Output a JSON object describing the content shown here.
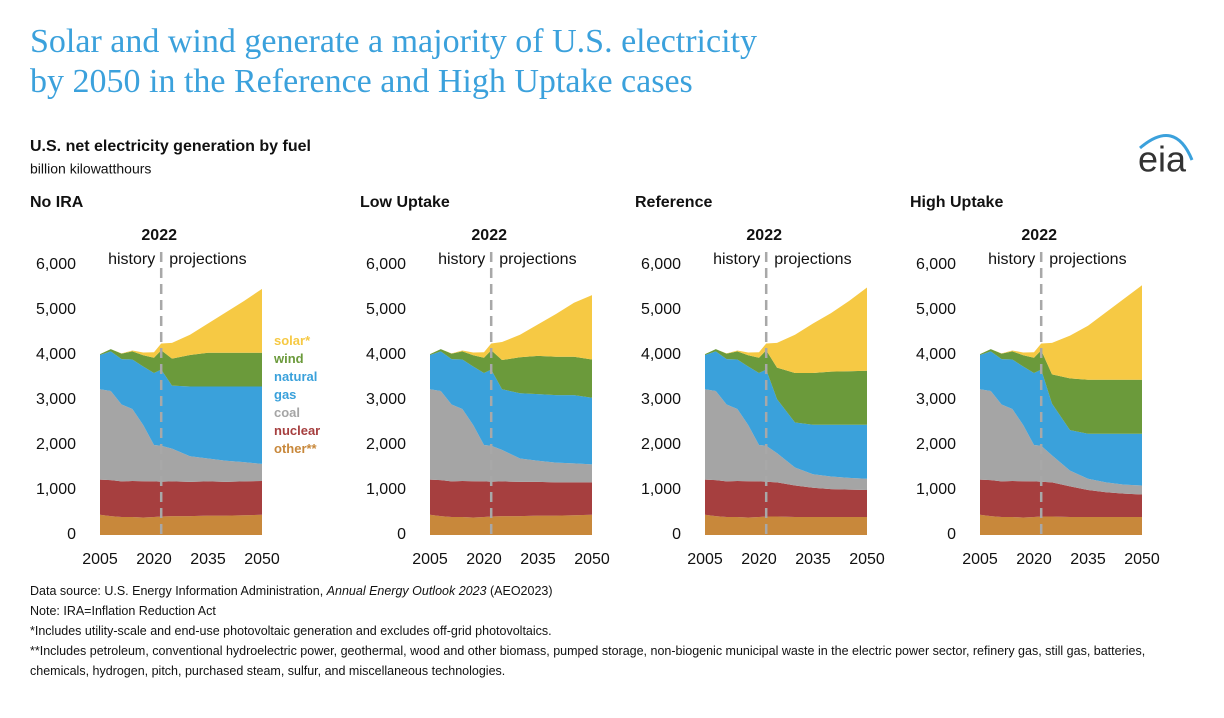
{
  "title": [
    "Solar and wind generate a majority of U.S. electricity",
    "by 2050 in the Reference and High Uptake cases"
  ],
  "subtitle": "U.S. net electricity generation by fuel",
  "unit": "billion kilowatthours",
  "logo": "eia",
  "notes": [
    [
      "Data source: U.S. Energy Information Administration, ",
      "Annual Energy Outlook 2023",
      " (AEO2023)"
    ],
    [
      "Note: IRA=Inflation Reduction Act"
    ],
    [
      "*Includes utility-scale and end-use photovoltaic generation and excludes off-grid photovoltaics."
    ],
    [
      "**Includes petroleum, conventional hydroelectric power, geothermal, wood and other biomass, pumped storage, non-biogenic municipal waste in the electric power sector, refinery gas, still gas, batteries, chemicals, hydrogen, pitch, purchased steam, sulfur, and miscellaneous technologies."
    ]
  ],
  "chart_data": [
    {
      "type": "area",
      "title": "No IRA",
      "divider": 2022,
      "history_label": "history",
      "projection_label": "projections",
      "x": [
        2005,
        2008,
        2011,
        2014,
        2017,
        2020,
        2022,
        2025,
        2030,
        2035,
        2040,
        2045,
        2050
      ],
      "xlim": [
        2005,
        2050
      ],
      "xticks": [
        2005,
        2020,
        2035,
        2050
      ],
      "ylim": [
        0,
        6000
      ],
      "yticks": [
        0,
        {
          "value": 1000,
          "label": "1,000"
        },
        {
          "value": 2000,
          "label": "2,000"
        },
        {
          "value": 3000,
          "label": "3,000"
        },
        {
          "value": 4000,
          "label": "4,000"
        },
        {
          "value": 5000,
          "label": "5,000"
        },
        {
          "value": 6000,
          "label": "6,000"
        }
      ],
      "series": [
        {
          "name": "other**",
          "color": "#c8883b",
          "values": [
            450,
            420,
            400,
            400,
            390,
            400,
            410,
            420,
            420,
            430,
            430,
            440,
            450
          ]
        },
        {
          "name": "nuclear",
          "color": "#a63f3f",
          "values": [
            780,
            800,
            790,
            800,
            805,
            790,
            775,
            770,
            760,
            760,
            750,
            750,
            750
          ]
        },
        {
          "name": "coal",
          "color": "#a5a5a5",
          "values": [
            2010,
            1980,
            1710,
            1600,
            1250,
            810,
            800,
            730,
            570,
            510,
            470,
            430,
            380
          ]
        },
        {
          "name": "natural gas",
          "color": "#3aa1db",
          "values": [
            760,
            880,
            1010,
            1100,
            1300,
            1600,
            1690,
            1400,
            1550,
            1600,
            1650,
            1680,
            1720
          ]
        },
        {
          "name": "wind",
          "color": "#6b9a3b",
          "values": [
            20,
            50,
            120,
            180,
            250,
            340,
            430,
            600,
            700,
            750,
            750,
            750,
            750
          ]
        },
        {
          "name": "solar*",
          "color": "#f6c944",
          "values": [
            0,
            0,
            5,
            20,
            60,
            120,
            150,
            350,
            450,
            650,
            900,
            1150,
            1420
          ]
        }
      ]
    },
    {
      "type": "area",
      "title": "Low Uptake",
      "divider": 2022,
      "history_label": "history",
      "projection_label": "projections",
      "x": [
        2005,
        2008,
        2011,
        2014,
        2017,
        2020,
        2022,
        2025,
        2030,
        2035,
        2040,
        2045,
        2050
      ],
      "xlim": [
        2005,
        2050
      ],
      "xticks": [
        2005,
        2020,
        2035,
        2050
      ],
      "ylim": [
        0,
        6000
      ],
      "yticks": [
        0,
        {
          "value": 1000,
          "label": "1,000"
        },
        {
          "value": 2000,
          "label": "2,000"
        },
        {
          "value": 3000,
          "label": "3,000"
        },
        {
          "value": 4000,
          "label": "4,000"
        },
        {
          "value": 5000,
          "label": "5,000"
        },
        {
          "value": 6000,
          "label": "6,000"
        }
      ],
      "series": [
        {
          "color": "#c8883b",
          "values": [
            450,
            420,
            400,
            400,
            390,
            400,
            410,
            420,
            420,
            430,
            430,
            440,
            450
          ]
        },
        {
          "color": "#a63f3f",
          "values": [
            780,
            800,
            790,
            800,
            805,
            790,
            775,
            770,
            760,
            750,
            740,
            730,
            720
          ]
        },
        {
          "color": "#a5a5a5",
          "values": [
            2010,
            1980,
            1710,
            1600,
            1250,
            810,
            800,
            700,
            520,
            470,
            440,
            420,
            400
          ]
        },
        {
          "color": "#3aa1db",
          "values": [
            760,
            880,
            1010,
            1100,
            1300,
            1600,
            1690,
            1350,
            1450,
            1480,
            1500,
            1520,
            1480
          ]
        },
        {
          "color": "#6b9a3b",
          "values": [
            20,
            50,
            120,
            180,
            250,
            340,
            430,
            650,
            800,
            850,
            850,
            850,
            850
          ]
        },
        {
          "color": "#f6c944",
          "values": [
            0,
            0,
            5,
            20,
            60,
            120,
            150,
            400,
            500,
            700,
            950,
            1200,
            1430
          ]
        }
      ]
    },
    {
      "type": "area",
      "title": "Reference",
      "divider": 2022,
      "history_label": "history",
      "projection_label": "projections",
      "x": [
        2005,
        2008,
        2011,
        2014,
        2017,
        2020,
        2022,
        2025,
        2030,
        2035,
        2040,
        2045,
        2050
      ],
      "xlim": [
        2005,
        2050
      ],
      "xticks": [
        2005,
        2020,
        2035,
        2050
      ],
      "ylim": [
        0,
        6000
      ],
      "yticks": [
        0,
        {
          "value": 1000,
          "label": "1,000"
        },
        {
          "value": 2000,
          "label": "2,000"
        },
        {
          "value": 3000,
          "label": "3,000"
        },
        {
          "value": 4000,
          "label": "4,000"
        },
        {
          "value": 5000,
          "label": "5,000"
        },
        {
          "value": 6000,
          "label": "6,000"
        }
      ],
      "series": [
        {
          "color": "#c8883b",
          "values": [
            450,
            420,
            400,
            400,
            390,
            400,
            410,
            410,
            400,
            400,
            400,
            400,
            400
          ]
        },
        {
          "color": "#a63f3f",
          "values": [
            780,
            800,
            790,
            800,
            805,
            790,
            775,
            760,
            700,
            650,
            620,
            610,
            600
          ]
        },
        {
          "color": "#a5a5a5",
          "values": [
            2010,
            1980,
            1710,
            1600,
            1250,
            810,
            800,
            650,
            400,
            300,
            280,
            260,
            250
          ]
        },
        {
          "color": "#3aa1db",
          "values": [
            760,
            880,
            1010,
            1100,
            1300,
            1600,
            1690,
            1200,
            1000,
            1100,
            1150,
            1180,
            1200
          ]
        },
        {
          "color": "#6b9a3b",
          "values": [
            20,
            50,
            120,
            180,
            250,
            340,
            430,
            700,
            1100,
            1150,
            1180,
            1190,
            1200
          ]
        },
        {
          "color": "#f6c944",
          "values": [
            0,
            0,
            5,
            20,
            60,
            120,
            150,
            550,
            850,
            1100,
            1300,
            1560,
            1850
          ]
        }
      ]
    },
    {
      "type": "area",
      "title": "High Uptake",
      "divider": 2022,
      "history_label": "history",
      "projection_label": "projections",
      "x": [
        2005,
        2008,
        2011,
        2014,
        2017,
        2020,
        2022,
        2025,
        2030,
        2035,
        2040,
        2045,
        2050
      ],
      "xlim": [
        2005,
        2050
      ],
      "xticks": [
        2005,
        2020,
        2035,
        2050
      ],
      "ylim": [
        0,
        6000
      ],
      "yticks": [
        0,
        {
          "value": 1000,
          "label": "1,000"
        },
        {
          "value": 2000,
          "label": "2,000"
        },
        {
          "value": 3000,
          "label": "3,000"
        },
        {
          "value": 4000,
          "label": "4,000"
        },
        {
          "value": 5000,
          "label": "5,000"
        },
        {
          "value": 6000,
          "label": "6,000"
        }
      ],
      "series": [
        {
          "color": "#c8883b",
          "values": [
            450,
            420,
            400,
            400,
            390,
            400,
            410,
            410,
            400,
            400,
            400,
            400,
            400
          ]
        },
        {
          "color": "#a63f3f",
          "values": [
            780,
            800,
            790,
            800,
            805,
            790,
            775,
            760,
            680,
            600,
            550,
            520,
            500
          ]
        },
        {
          "color": "#a5a5a5",
          "values": [
            2010,
            1980,
            1710,
            1600,
            1250,
            810,
            800,
            600,
            350,
            250,
            220,
            200,
            200
          ]
        },
        {
          "color": "#3aa1db",
          "values": [
            760,
            880,
            1010,
            1100,
            1300,
            1600,
            1690,
            1150,
            900,
            1000,
            1080,
            1130,
            1150
          ]
        },
        {
          "color": "#6b9a3b",
          "values": [
            20,
            50,
            120,
            180,
            250,
            340,
            430,
            650,
            1150,
            1200,
            1200,
            1200,
            1200
          ]
        },
        {
          "color": "#f6c944",
          "values": [
            0,
            0,
            5,
            20,
            60,
            120,
            150,
            700,
            950,
            1200,
            1500,
            1800,
            2100
          ]
        }
      ]
    }
  ]
}
